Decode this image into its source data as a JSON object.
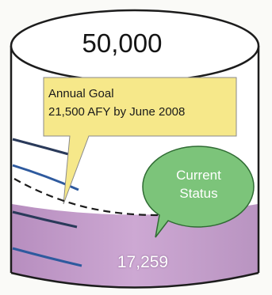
{
  "tank": {
    "capacity_label": "50,000",
    "current_value_label": "17,259",
    "fill_color": "#c9a3cf"
  },
  "goal": {
    "title": "Annual Goal",
    "detail": "21,500 AFY by June 2008",
    "callout_color": "#f6e88a"
  },
  "status": {
    "line1": "Current",
    "line2": "Status",
    "bubble_color": "#7cc47a"
  }
}
